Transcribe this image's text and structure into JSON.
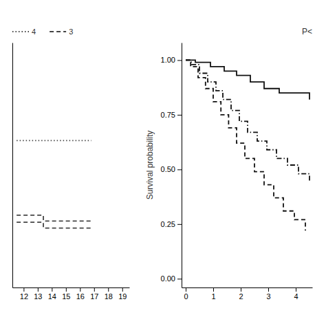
{
  "chart_data": [
    {
      "type": "line",
      "xlim": [
        11.2,
        19.5
      ],
      "ylim": [
        0.0,
        1.05
      ],
      "xticks": [
        12,
        13,
        14,
        15,
        16,
        17,
        18,
        19
      ],
      "tick_labels": "x",
      "legend": "top-left",
      "series": [
        {
          "name": "4",
          "color": "#444444",
          "line_style": "dotted",
          "x": [
            11.5,
            16.8
          ],
          "values": [
            0.63,
            0.63
          ]
        },
        {
          "name": "3",
          "color": "#444444",
          "line_style": "dashed",
          "x": [
            11.5,
            13.4,
            13.4,
            16.8
          ],
          "values": [
            0.31,
            0.31,
            0.285,
            0.285
          ]
        },
        {
          "color": "#444444",
          "line_style": "dashed",
          "x": [
            11.5,
            13.4,
            13.4,
            16.8
          ],
          "values": [
            0.28,
            0.28,
            0.255,
            0.255
          ]
        }
      ]
    },
    {
      "type": "step",
      "title": "P<",
      "y_label": "Survival probability",
      "xlim": [
        -0.15,
        4.6
      ],
      "ylim": [
        -0.04,
        1.08
      ],
      "xticks": [
        0,
        1,
        2,
        3,
        4
      ],
      "yticks": [
        {
          "value": 0.0,
          "label": "0.00"
        },
        {
          "value": 0.25,
          "label": "0.25"
        },
        {
          "value": 0.5,
          "label": "0.50"
        },
        {
          "value": 0.75,
          "label": "0.75"
        },
        {
          "value": 1.0,
          "label": "1.00"
        }
      ],
      "series": [
        {
          "color": "#111111",
          "line_style": "solid",
          "x": [
            0,
            0.35,
            0.9,
            1.4,
            1.85,
            2.35,
            2.85,
            3.4,
            4.5
          ],
          "values": [
            1.0,
            0.99,
            0.97,
            0.95,
            0.93,
            0.9,
            0.87,
            0.85,
            0.82
          ]
        },
        {
          "color": "#111111",
          "line_style": "dashdot",
          "x": [
            0,
            0.2,
            0.5,
            0.8,
            1.1,
            1.35,
            1.65,
            1.95,
            2.25,
            2.6,
            2.95,
            3.3,
            3.7,
            4.1,
            4.5
          ],
          "values": [
            1.0,
            0.98,
            0.94,
            0.9,
            0.86,
            0.82,
            0.77,
            0.72,
            0.67,
            0.63,
            0.59,
            0.55,
            0.52,
            0.48,
            0.44
          ]
        },
        {
          "color": "#111111",
          "line_style": "dashed",
          "x": [
            0,
            0.18,
            0.45,
            0.72,
            1.0,
            1.28,
            1.56,
            1.85,
            2.15,
            2.5,
            2.85,
            3.2,
            3.55,
            3.95,
            4.35
          ],
          "values": [
            1.0,
            0.97,
            0.92,
            0.87,
            0.81,
            0.75,
            0.69,
            0.62,
            0.55,
            0.49,
            0.43,
            0.37,
            0.31,
            0.27,
            0.22
          ]
        }
      ]
    }
  ]
}
